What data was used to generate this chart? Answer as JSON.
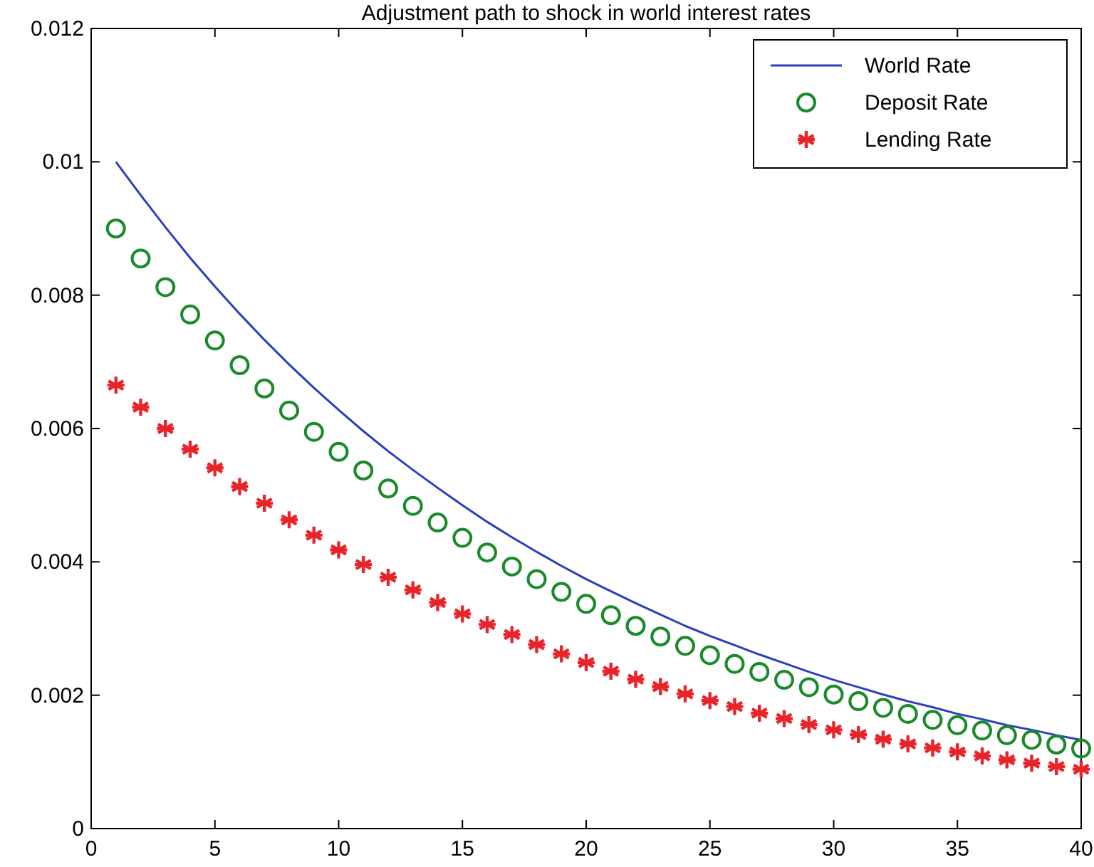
{
  "chart_data": {
    "type": "line",
    "title": "Adjustment path to shock in world interest rates",
    "x": [
      1,
      2,
      3,
      4,
      5,
      6,
      7,
      8,
      9,
      10,
      11,
      12,
      13,
      14,
      15,
      16,
      17,
      18,
      19,
      20,
      21,
      22,
      23,
      24,
      25,
      26,
      27,
      28,
      29,
      30,
      31,
      32,
      33,
      34,
      35,
      36,
      37,
      38,
      39,
      40
    ],
    "series": [
      {
        "name": "World Rate",
        "color": "#2b3fbf",
        "marker": "none",
        "values": [
          0.01,
          0.0095,
          0.00902,
          0.00856,
          0.00813,
          0.00772,
          0.00733,
          0.00696,
          0.00661,
          0.00628,
          0.00596,
          0.00566,
          0.00538,
          0.00511,
          0.00485,
          0.0046,
          0.00437,
          0.00415,
          0.00394,
          0.00374,
          0.00356,
          0.00338,
          0.00321,
          0.00304,
          0.00289,
          0.00275,
          0.00261,
          0.00248,
          0.00235,
          0.00223,
          0.00212,
          0.00201,
          0.00191,
          0.00182,
          0.00172,
          0.00164,
          0.00155,
          0.00148,
          0.0014,
          0.00133
        ]
      },
      {
        "name": "Deposit Rate",
        "type": "scatter",
        "color": "#1a8a2a",
        "marker": "circle",
        "values": [
          0.009,
          0.00855,
          0.00812,
          0.00771,
          0.00732,
          0.00695,
          0.0066,
          0.00627,
          0.00595,
          0.00565,
          0.00537,
          0.0051,
          0.00484,
          0.00459,
          0.00436,
          0.00414,
          0.00393,
          0.00374,
          0.00355,
          0.00337,
          0.0032,
          0.00304,
          0.00288,
          0.00274,
          0.0026,
          0.00247,
          0.00235,
          0.00223,
          0.00212,
          0.00201,
          0.00191,
          0.00181,
          0.00172,
          0.00163,
          0.00155,
          0.00147,
          0.0014,
          0.00133,
          0.00126,
          0.0012
        ]
      },
      {
        "name": "Lending Rate",
        "type": "scatter",
        "color": "#e8242b",
        "marker": "cross",
        "values": [
          0.00665,
          0.00632,
          0.006,
          0.00569,
          0.00541,
          0.00513,
          0.00488,
          0.00463,
          0.0044,
          0.00418,
          0.00396,
          0.00377,
          0.00358,
          0.00339,
          0.00322,
          0.00306,
          0.00291,
          0.00276,
          0.00262,
          0.00249,
          0.00236,
          0.00224,
          0.00213,
          0.00202,
          0.00192,
          0.00183,
          0.00173,
          0.00165,
          0.00156,
          0.00148,
          0.00141,
          0.00134,
          0.00127,
          0.00121,
          0.00115,
          0.00109,
          0.00103,
          0.00098,
          0.00093,
          0.00089
        ]
      }
    ],
    "xlim": [
      0,
      40
    ],
    "xticks": [
      0,
      5,
      10,
      15,
      20,
      25,
      30,
      35,
      40
    ],
    "ylim": [
      0,
      0.012
    ],
    "yticks": [
      0,
      0.002,
      0.004,
      0.006,
      0.008,
      0.01,
      0.012
    ],
    "grid": false,
    "legend": "top right"
  }
}
